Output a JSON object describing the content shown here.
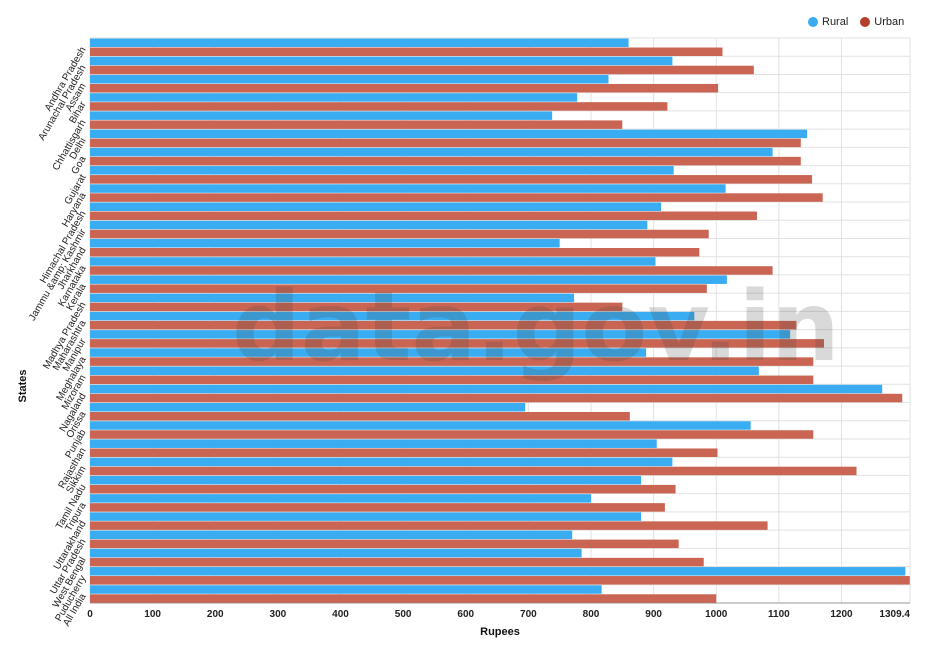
{
  "chart_data": {
    "type": "bar",
    "orientation": "horizontal",
    "xlabel": "Rupees",
    "ylabel": "States",
    "xlim": [
      0,
      1309.4
    ],
    "xticks": [
      0,
      100,
      200,
      300,
      400,
      500,
      600,
      700,
      800,
      900,
      1000,
      1100,
      1200,
      "1309.4"
    ],
    "grid": true,
    "legend_position": "top-right",
    "categories": [
      "Andhra Pradesh",
      "Arunachal Pradesh",
      "Assam",
      "Bihar",
      "Chhattisgarh",
      "Delhi",
      "Goa",
      "Gujarat",
      "Haryana",
      "Himachal Pradesh",
      "Jammu &amp; Kashmir",
      "Jharkhand",
      "Karnataka",
      "Kerala",
      "Madhya Pradesh",
      "Maharashtra",
      "Manipur",
      "Meghalaya",
      "Mizoram",
      "Nagaland",
      "Orissa",
      "Punjab",
      "Rajasthan",
      "Sikkim",
      "Tamil Nadu",
      "Tripura",
      "Uttarakhand",
      "Uttar Pradesh",
      "West Bengal",
      "Puducherry",
      "All India"
    ],
    "series": [
      {
        "name": "Rural",
        "color": "#3aadf2",
        "values": [
          860,
          930,
          828,
          778,
          738,
          1145,
          1090,
          932,
          1015,
          912,
          890,
          750,
          903,
          1017,
          773,
          965,
          1118,
          888,
          1068,
          1265,
          695,
          1055,
          905,
          930,
          880,
          800,
          880,
          770,
          785,
          1302,
          817
        ]
      },
      {
        "name": "Urban",
        "color": "#c96552",
        "values": [
          1010,
          1060,
          1003,
          922,
          850,
          1135,
          1135,
          1153,
          1170,
          1065,
          988,
          973,
          1090,
          985,
          850,
          1128,
          1172,
          1155,
          1155,
          1297,
          862,
          1155,
          1002,
          1224,
          935,
          918,
          1082,
          940,
          980,
          1309,
          1000
        ]
      }
    ]
  },
  "watermark": "data.gov.in"
}
